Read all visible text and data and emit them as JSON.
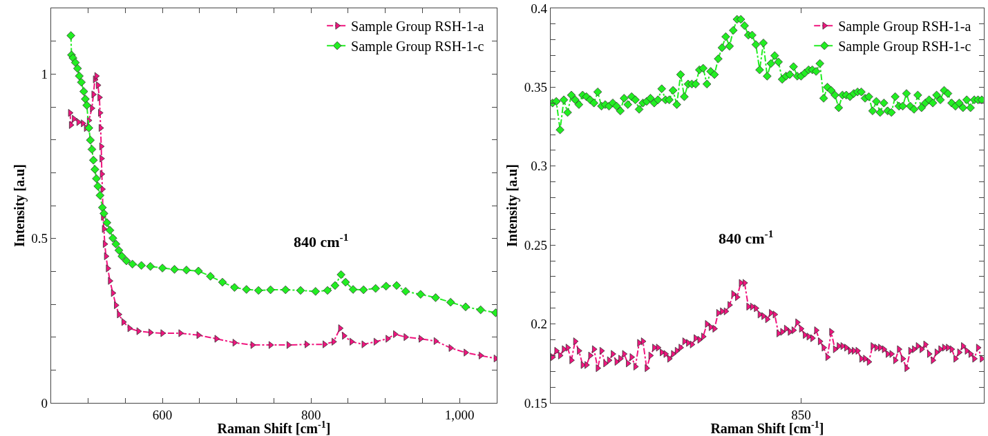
{
  "chart_data": [
    {
      "type": "line",
      "xlabel": "Raman Shift [cm$^{-1}$]",
      "ylabel": "Intensity [a.u]",
      "legend": "top right",
      "line_style": "dashed",
      "xlim": [
        450,
        1050
      ],
      "ylim": [
        0,
        1.2
      ],
      "xticks": [
        {
          "value": 450,
          "label": null
        },
        {
          "value": 500,
          "label": null
        },
        {
          "value": 550,
          "label": null
        },
        600,
        {
          "value": 650,
          "label": null
        },
        {
          "value": 700,
          "label": null
        },
        {
          "value": 750,
          "label": null
        },
        800,
        {
          "value": 850,
          "label": null
        },
        {
          "value": 900,
          "label": null
        },
        {
          "value": 950,
          "label": null
        },
        {
          "value": 1000,
          "label": "1,000"
        }
      ],
      "yticks": [
        0,
        {
          "value": 0.1,
          "label": null
        },
        {
          "value": 0.2,
          "label": null
        },
        {
          "value": 0.3,
          "label": null
        },
        {
          "value": 0.4,
          "label": null
        },
        0.5,
        {
          "value": 0.6,
          "label": null
        },
        {
          "value": 0.7,
          "label": null
        },
        {
          "value": 0.8,
          "label": null
        },
        {
          "value": 0.9,
          "label": null
        },
        1,
        {
          "value": 1.1,
          "label": null
        }
      ],
      "annotations": [
        "840 cm$^{-1}$"
      ],
      "series": [
        {
          "name": "Sample Group RSH-1-a",
          "color": "#f0147e",
          "marker": "triangle",
          "x": [
            475.6,
            476.8,
            480.8,
            486.9,
            492.9,
            497.0,
            501.0,
            505.1,
            507.1,
            509.1,
            511.1,
            513.1,
            515.2,
            516.0,
            516.8,
            517.6,
            518.0,
            518.4,
            519.2,
            520.0,
            521.2,
            522.4,
            524.0,
            526.5,
            529.3,
            533.3,
            537.4,
            541.4,
            547.5,
            555.6,
            567.7,
            583.8,
            600.0,
            624.2,
            648.5,
            672.7,
            697.0,
            721.2,
            745.5,
            769.7,
            794.0,
            818.2,
            830.3,
            839.2,
            844.4,
            854.5,
            870.7,
            886.9,
            903.0,
            913.1,
            927.3,
            947.5,
            967.7,
            987.9,
            1008.1,
            1028.3,
            1048.5
          ],
          "values": [
            0.882,
            0.845,
            0.864,
            0.854,
            0.85,
            0.836,
            0.859,
            0.896,
            0.938,
            0.984,
            0.994,
            0.966,
            0.929,
            0.882,
            0.836,
            0.78,
            0.743,
            0.696,
            0.65,
            0.566,
            0.529,
            0.483,
            0.446,
            0.409,
            0.371,
            0.334,
            0.297,
            0.269,
            0.246,
            0.227,
            0.218,
            0.214,
            0.212,
            0.212,
            0.206,
            0.195,
            0.183,
            0.176,
            0.176,
            0.176,
            0.178,
            0.178,
            0.186,
            0.227,
            0.204,
            0.186,
            0.178,
            0.186,
            0.195,
            0.209,
            0.2,
            0.195,
            0.188,
            0.167,
            0.153,
            0.144,
            0.135
          ]
        },
        {
          "name": "Sample Group RSH-1-c",
          "color": "#22ee22",
          "marker": "diamond",
          "x": [
            476.8,
            477.6,
            479.6,
            482.8,
            485.7,
            488.1,
            490.9,
            494.1,
            496.2,
            498.2,
            501.0,
            503.0,
            505.1,
            507.1,
            509.1,
            511.1,
            513.1,
            516.0,
            519.2,
            521.2,
            525.3,
            529.3,
            533.3,
            537.4,
            541.4,
            545.5,
            551.5,
            559.6,
            571.7,
            583.8,
            600.0,
            616.2,
            632.3,
            648.5,
            664.6,
            680.8,
            697.0,
            713.1,
            729.3,
            745.5,
            765.7,
            785.9,
            806.1,
            822.2,
            832.3,
            840.4,
            846.5,
            856.6,
            870.7,
            886.9,
            901.0,
            915.2,
            927.3,
            947.5,
            967.7,
            987.9,
            1008.1,
            1028.3,
            1048.5
          ],
          "values": [
            1.117,
            1.058,
            1.049,
            1.035,
            1.017,
            0.994,
            0.975,
            0.947,
            0.924,
            0.905,
            0.836,
            0.799,
            0.771,
            0.738,
            0.71,
            0.682,
            0.659,
            0.631,
            0.594,
            0.576,
            0.548,
            0.525,
            0.501,
            0.483,
            0.464,
            0.446,
            0.432,
            0.422,
            0.418,
            0.415,
            0.41,
            0.406,
            0.404,
            0.401,
            0.385,
            0.367,
            0.351,
            0.345,
            0.342,
            0.344,
            0.344,
            0.342,
            0.339,
            0.342,
            0.357,
            0.39,
            0.367,
            0.345,
            0.344,
            0.348,
            0.355,
            0.357,
            0.339,
            0.33,
            0.32,
            0.306,
            0.292,
            0.283,
            0.274
          ]
        }
      ]
    },
    {
      "type": "line",
      "xlabel": "Raman Shift [cm$^{-1}$]",
      "ylabel": "Intensity [a.u]",
      "legend": "top right",
      "line_style": "dashed",
      "ylim": [
        0.15,
        0.4
      ],
      "categories": [
        null,
        null,
        null,
        null,
        null,
        null,
        null,
        null,
        null,
        null,
        null,
        null,
        null,
        null,
        null,
        null,
        null,
        null,
        null,
        null,
        null,
        null,
        null,
        null,
        null,
        null,
        null,
        null,
        null,
        null,
        null,
        null,
        null,
        null,
        null,
        null,
        null,
        null,
        null,
        null,
        null,
        null,
        null,
        null,
        null,
        null,
        null,
        null,
        null,
        null,
        null,
        null,
        null,
        null,
        null,
        null,
        null,
        null,
        null,
        null,
        null,
        null,
        null,
        null,
        null,
        null,
        "850",
        null,
        null,
        null,
        null,
        null,
        null,
        null,
        null,
        null,
        null,
        null,
        null,
        null,
        null,
        null,
        null,
        null,
        null,
        null,
        null,
        null,
        null,
        null,
        null,
        null,
        null,
        null,
        null,
        null,
        null,
        null,
        null,
        null,
        null,
        null,
        null,
        null,
        null,
        null,
        null,
        null,
        null,
        null,
        null,
        null,
        null,
        null,
        null
      ],
      "yticks": [
        0.15,
        {
          "value": 0.16,
          "label": null
        },
        {
          "value": 0.17,
          "label": null
        },
        {
          "value": 0.18,
          "label": null
        },
        {
          "value": 0.19,
          "label": null
        },
        0.2,
        {
          "value": 0.21,
          "label": null
        },
        {
          "value": 0.22,
          "label": null
        },
        {
          "value": 0.23,
          "label": null
        },
        {
          "value": 0.24,
          "label": null
        },
        0.25,
        {
          "value": 0.26,
          "label": null
        },
        {
          "value": 0.27,
          "label": null
        },
        {
          "value": 0.28,
          "label": null
        },
        {
          "value": 0.29,
          "label": null
        },
        0.3,
        {
          "value": 0.31,
          "label": null
        },
        {
          "value": 0.32,
          "label": null
        },
        {
          "value": 0.33,
          "label": null
        },
        {
          "value": 0.34,
          "label": null
        },
        0.35,
        {
          "value": 0.36,
          "label": null
        },
        {
          "value": 0.37,
          "label": null
        },
        {
          "value": 0.38,
          "label": null
        },
        {
          "value": 0.39,
          "label": null
        },
        0.4
      ],
      "annotations": [
        "840 cm$^{-1}$"
      ],
      "series": [
        {
          "name": "Sample Group RSH-1-a",
          "color": "#f0147e",
          "marker": "triangle",
          "values": [
            0.179,
            0.183,
            0.18,
            0.184,
            0.185,
            0.177,
            0.189,
            0.183,
            0.174,
            0.174,
            0.18,
            0.184,
            0.172,
            0.183,
            0.175,
            0.177,
            0.181,
            0.176,
            0.178,
            0.181,
            0.175,
            0.179,
            0.173,
            0.188,
            0.189,
            0.172,
            0.18,
            0.185,
            0.185,
            0.182,
            0.181,
            0.178,
            0.181,
            0.183,
            0.185,
            0.189,
            0.188,
            0.187,
            0.191,
            0.19,
            0.192,
            0.2,
            0.198,
            0.197,
            0.207,
            0.208,
            0.208,
            0.212,
            0.219,
            0.217,
            0.226,
            0.226,
            0.211,
            0.211,
            0.21,
            0.206,
            0.205,
            0.203,
            0.207,
            0.206,
            0.194,
            0.195,
            0.197,
            0.195,
            0.196,
            0.201,
            0.197,
            0.193,
            0.192,
            0.191,
            0.196,
            0.189,
            0.185,
            0.179,
            0.195,
            0.184,
            0.186,
            0.186,
            0.185,
            0.183,
            0.183,
            0.183,
            0.178,
            0.178,
            0.176,
            0.186,
            0.185,
            0.185,
            0.184,
            0.181,
            0.181,
            0.177,
            0.184,
            0.178,
            0.172,
            0.183,
            0.184,
            0.186,
            0.184,
            0.187,
            0.181,
            0.177,
            0.182,
            0.184,
            0.185,
            0.185,
            0.184,
            0.178,
            0.182,
            0.186,
            0.183,
            0.181,
            0.178,
            0.185,
            0.178
          ]
        },
        {
          "name": "Sample Group RSH-1-c",
          "color": "#22ee22",
          "marker": "diamond",
          "values": [
            0.34,
            0.341,
            0.323,
            0.342,
            0.334,
            0.345,
            0.342,
            0.339,
            0.345,
            0.344,
            0.342,
            0.34,
            0.347,
            0.338,
            0.339,
            0.338,
            0.34,
            0.338,
            0.335,
            0.343,
            0.339,
            0.344,
            0.342,
            0.336,
            0.34,
            0.341,
            0.343,
            0.34,
            0.342,
            0.349,
            0.342,
            0.342,
            0.348,
            0.339,
            0.358,
            0.344,
            0.352,
            0.352,
            0.352,
            0.361,
            0.362,
            0.352,
            0.36,
            0.358,
            0.368,
            0.375,
            0.382,
            0.376,
            0.386,
            0.393,
            0.393,
            0.389,
            0.383,
            0.383,
            0.377,
            0.361,
            0.378,
            0.357,
            0.365,
            0.37,
            0.366,
            0.355,
            0.357,
            0.358,
            0.363,
            0.357,
            0.357,
            0.359,
            0.361,
            0.361,
            0.36,
            0.365,
            0.343,
            0.35,
            0.348,
            0.345,
            0.337,
            0.345,
            0.345,
            0.344,
            0.346,
            0.347,
            0.347,
            0.343,
            0.344,
            0.335,
            0.341,
            0.334,
            0.34,
            0.335,
            0.334,
            0.344,
            0.338,
            0.338,
            0.346,
            0.338,
            0.336,
            0.345,
            0.337,
            0.34,
            0.342,
            0.34,
            0.345,
            0.342,
            0.348,
            0.346,
            0.34,
            0.338,
            0.34,
            0.337,
            0.342,
            0.337,
            0.342,
            0.342,
            0.342
          ]
        }
      ]
    }
  ]
}
